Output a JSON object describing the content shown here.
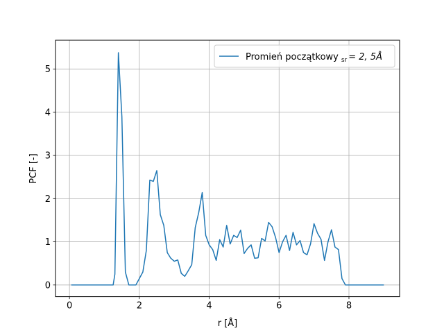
{
  "chart_data": {
    "type": "line",
    "title": "",
    "xlabel": "r [Å]",
    "ylabel": "PCF [-]",
    "xlim": [
      -0.4,
      9.45
    ],
    "ylim": [
      -0.27,
      5.67
    ],
    "xticks": [
      0,
      2,
      4,
      6,
      8
    ],
    "yticks": [
      0,
      1,
      2,
      3,
      4,
      5
    ],
    "xtick_labels": [
      "0",
      "2",
      "4",
      "6",
      "8"
    ],
    "ytick_labels": [
      "0",
      "1",
      "2",
      "3",
      "4",
      "5"
    ],
    "grid": true,
    "legend_position": "upper right",
    "series": [
      {
        "name": "Promień początkowy",
        "name_subscript": "sr",
        "name_suffix": "= 2, 5Å",
        "color": "#1f77b4",
        "x": [
          0.05,
          0.15,
          0.25,
          0.35,
          0.45,
          0.55,
          0.65,
          0.75,
          0.85,
          0.95,
          1.05,
          1.15,
          1.25,
          1.3,
          1.4,
          1.5,
          1.6,
          1.7,
          1.8,
          1.9,
          2.0,
          2.1,
          2.2,
          2.3,
          2.4,
          2.5,
          2.6,
          2.7,
          2.8,
          2.9,
          3.0,
          3.1,
          3.2,
          3.3,
          3.4,
          3.5,
          3.6,
          3.7,
          3.8,
          3.9,
          4.0,
          4.1,
          4.2,
          4.3,
          4.4,
          4.5,
          4.6,
          4.7,
          4.8,
          4.9,
          5.0,
          5.1,
          5.2,
          5.3,
          5.4,
          5.5,
          5.6,
          5.7,
          5.8,
          5.9,
          6.0,
          6.1,
          6.2,
          6.3,
          6.4,
          6.5,
          6.6,
          6.7,
          6.8,
          6.9,
          7.0,
          7.1,
          7.2,
          7.3,
          7.4,
          7.5,
          7.6,
          7.7,
          7.8,
          7.9,
          8.0,
          8.1,
          8.2,
          8.3,
          8.4,
          8.5,
          8.6,
          8.7,
          8.8,
          8.9,
          9.0
        ],
        "y": [
          0,
          0,
          0,
          0,
          0,
          0,
          0,
          0,
          0,
          0,
          0,
          0,
          0,
          0.25,
          5.38,
          3.9,
          0.3,
          0,
          0,
          0,
          0.15,
          0.3,
          0.8,
          2.43,
          2.4,
          2.65,
          1.63,
          1.38,
          0.75,
          0.62,
          0.55,
          0.58,
          0.27,
          0.2,
          0.33,
          0.47,
          1.33,
          1.68,
          2.14,
          1.15,
          0.93,
          0.82,
          0.57,
          1.05,
          0.88,
          1.38,
          0.95,
          1.15,
          1.1,
          1.27,
          0.73,
          0.85,
          0.93,
          0.62,
          0.63,
          1.08,
          1.02,
          1.45,
          1.35,
          1.1,
          0.75,
          1.0,
          1.15,
          0.8,
          1.22,
          0.93,
          1.03,
          0.75,
          0.7,
          0.95,
          1.42,
          1.2,
          1.06,
          0.57,
          1.0,
          1.28,
          0.88,
          0.82,
          0.15,
          0,
          0,
          0,
          0,
          0,
          0,
          0,
          0,
          0,
          0,
          0,
          0
        ]
      }
    ]
  }
}
